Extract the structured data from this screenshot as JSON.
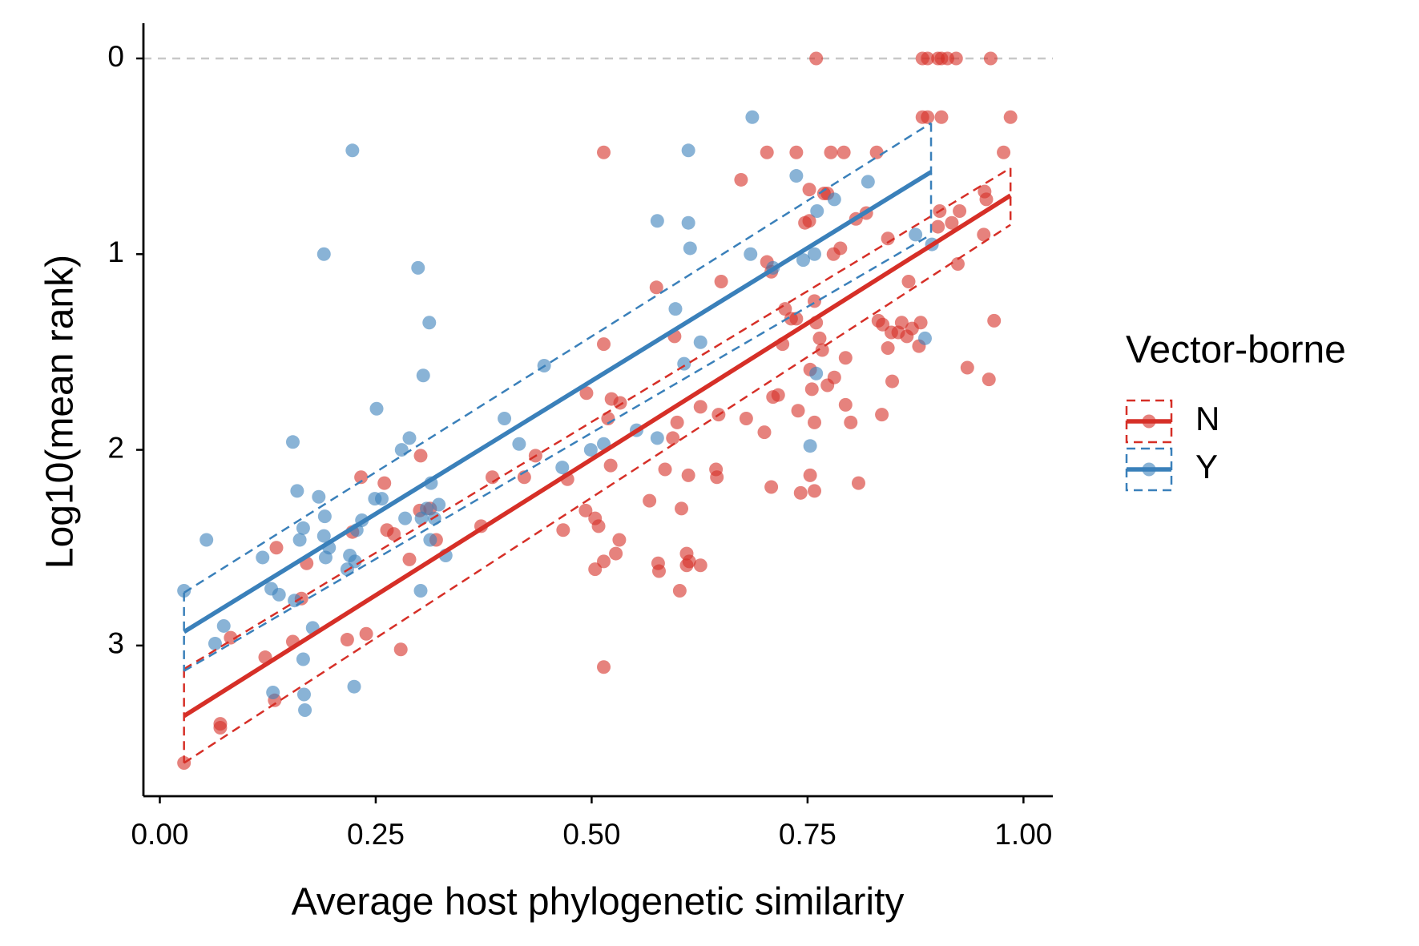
{
  "chart_data": {
    "type": "scatter",
    "x_label": "Average host phylogenetic similarity",
    "y_label": "Log10(mean rank)",
    "legend_title": "Vector-borne",
    "legend_position": "right",
    "xlim": [
      -0.019,
      1.034
    ],
    "ylim": [
      -0.18,
      3.77
    ],
    "y_reversed": true,
    "xticks": [
      {
        "value": 0,
        "label": "0.00"
      },
      {
        "value": 0.25,
        "label": "0.25"
      },
      {
        "value": 0.5,
        "label": "0.50"
      },
      {
        "value": 0.75,
        "label": "0.75"
      },
      {
        "value": 1,
        "label": "1.00"
      }
    ],
    "yticks": [
      0,
      1,
      2,
      3
    ],
    "hline": 0,
    "series": [
      {
        "name": "N",
        "color": "#d62f27",
        "x": [
          0.028,
          0.07,
          0.07,
          0.082,
          0.122,
          0.133,
          0.135,
          0.154,
          0.164,
          0.17,
          0.217,
          0.223,
          0.233,
          0.239,
          0.26,
          0.263,
          0.271,
          0.279,
          0.289,
          0.301,
          0.302,
          0.313,
          0.32,
          0.372,
          0.385,
          0.422,
          0.435,
          0.467,
          0.472,
          0.494,
          0.493,
          0.504,
          0.504,
          0.508,
          0.514,
          0.514,
          0.514,
          0.514,
          0.519,
          0.522,
          0.523,
          0.533,
          0.528,
          0.532,
          0.567,
          0.575,
          0.577,
          0.578,
          0.585,
          0.594,
          0.596,
          0.599,
          0.602,
          0.604,
          0.61,
          0.61,
          0.613,
          0.626,
          0.612,
          0.626,
          0.644,
          0.645,
          0.65,
          0.647,
          0.673,
          0.679,
          0.7,
          0.703,
          0.703,
          0.708,
          0.708,
          0.71,
          0.716,
          0.721,
          0.724,
          0.731,
          0.737,
          0.737,
          0.739,
          0.742,
          0.747,
          0.752,
          0.752,
          0.753,
          0.753,
          0.755,
          0.758,
          0.758,
          0.758,
          0.76,
          0.76,
          0.764,
          0.767,
          0.769,
          0.773,
          0.773,
          0.777,
          0.78,
          0.781,
          0.788,
          0.792,
          0.794,
          0.794,
          0.8,
          0.806,
          0.809,
          0.818,
          0.83,
          0.832,
          0.836,
          0.837,
          0.843,
          0.843,
          0.847,
          0.848,
          0.855,
          0.859,
          0.865,
          0.867,
          0.871,
          0.879,
          0.881,
          0.883,
          0.883,
          0.889,
          0.889,
          0.901,
          0.901,
          0.903,
          0.905,
          0.905,
          0.912,
          0.917,
          0.922,
          0.924,
          0.926,
          0.935,
          0.954,
          0.955,
          0.957,
          0.96,
          0.962,
          0.966,
          0.977,
          0.985
        ],
        "values": [
          3.6,
          3.4,
          3.42,
          2.96,
          3.06,
          3.28,
          2.5,
          2.98,
          2.76,
          2.58,
          2.97,
          2.42,
          2.14,
          2.94,
          2.17,
          2.41,
          2.43,
          3.02,
          2.56,
          2.31,
          2.03,
          2.3,
          2.46,
          2.39,
          2.14,
          2.14,
          2.03,
          2.41,
          2.15,
          1.71,
          2.31,
          2.35,
          2.61,
          2.39,
          0.48,
          1.46,
          3.11,
          2.57,
          1.84,
          2.08,
          1.74,
          1.76,
          2.53,
          2.46,
          2.26,
          1.17,
          2.58,
          2.62,
          2.1,
          1.94,
          1.42,
          1.86,
          2.72,
          2.3,
          2.53,
          2.59,
          2.57,
          2.59,
          2.13,
          1.78,
          2.1,
          2.14,
          1.14,
          1.82,
          0.62,
          1.84,
          1.91,
          0.48,
          1.04,
          1.09,
          2.19,
          1.73,
          1.72,
          1.46,
          1.28,
          1.33,
          0.48,
          1.33,
          1.8,
          2.22,
          0.84,
          0.67,
          0.83,
          2.13,
          1.59,
          1.69,
          1.86,
          1.24,
          2.21,
          0,
          1.35,
          1.43,
          1.49,
          0.69,
          0.69,
          1.67,
          0.48,
          1.0,
          1.63,
          0.97,
          0.48,
          1.53,
          1.77,
          1.86,
          0.82,
          2.17,
          0.79,
          0.48,
          1.34,
          1.82,
          1.36,
          0.92,
          1.48,
          1.4,
          1.65,
          1.4,
          1.35,
          1.42,
          1.14,
          1.38,
          1.47,
          1.35,
          0.3,
          0,
          0.3,
          0,
          0,
          0.86,
          0.78,
          0.3,
          0,
          0,
          0.84,
          0,
          1.05,
          0.78,
          1.58,
          0.9,
          0.68,
          0.72,
          1.64,
          0,
          1.34,
          0.48,
          0.3
        ],
        "fit_x": [
          0.028,
          0.985
        ],
        "fit": [
          3.36,
          0.7
        ],
        "ci_lower": [
          3.12,
          0.56
        ],
        "ci_upper": [
          3.6,
          0.85
        ]
      },
      {
        "name": "Y",
        "color": "#3a80ba",
        "x": [
          0.028,
          0.054,
          0.064,
          0.074,
          0.119,
          0.129,
          0.131,
          0.138,
          0.154,
          0.156,
          0.159,
          0.162,
          0.166,
          0.166,
          0.167,
          0.168,
          0.177,
          0.184,
          0.19,
          0.19,
          0.191,
          0.192,
          0.196,
          0.217,
          0.22,
          0.223,
          0.225,
          0.226,
          0.228,
          0.234,
          0.249,
          0.251,
          0.257,
          0.28,
          0.289,
          0.284,
          0.299,
          0.302,
          0.303,
          0.305,
          0.309,
          0.313,
          0.314,
          0.312,
          0.318,
          0.323,
          0.331,
          0.399,
          0.416,
          0.445,
          0.466,
          0.499,
          0.514,
          0.552,
          0.576,
          0.576,
          0.597,
          0.607,
          0.612,
          0.612,
          0.614,
          0.626,
          0.686,
          0.684,
          0.71,
          0.737,
          0.745,
          0.753,
          0.758,
          0.761,
          0.76,
          0.781,
          0.82,
          0.875,
          0.886,
          0.894
        ],
        "values": [
          2.72,
          2.46,
          2.99,
          2.9,
          2.55,
          2.71,
          3.24,
          2.74,
          1.96,
          2.77,
          2.21,
          2.46,
          2.4,
          3.07,
          3.25,
          3.33,
          2.91,
          2.24,
          1.0,
          2.44,
          2.34,
          2.55,
          2.5,
          2.61,
          2.54,
          0.47,
          3.21,
          2.57,
          2.41,
          2.36,
          2.25,
          1.79,
          2.25,
          2.0,
          1.94,
          2.35,
          1.07,
          2.72,
          2.35,
          1.62,
          2.3,
          2.46,
          2.17,
          1.35,
          2.35,
          2.28,
          2.54,
          1.84,
          1.97,
          1.57,
          2.09,
          2.0,
          1.97,
          1.9,
          0.83,
          1.94,
          1.28,
          1.56,
          0.47,
          0.84,
          0.97,
          1.45,
          0.3,
          1.0,
          1.07,
          0.6,
          1.03,
          1.98,
          1.0,
          0.78,
          1.61,
          0.72,
          0.63,
          0.9,
          1.43,
          0.95
        ],
        "fit_x": [
          0.028,
          0.893
        ],
        "fit": [
          2.93,
          0.58
        ],
        "ci_lower": [
          2.73,
          0.33
        ],
        "ci_upper": [
          3.13,
          0.9
        ]
      }
    ]
  }
}
